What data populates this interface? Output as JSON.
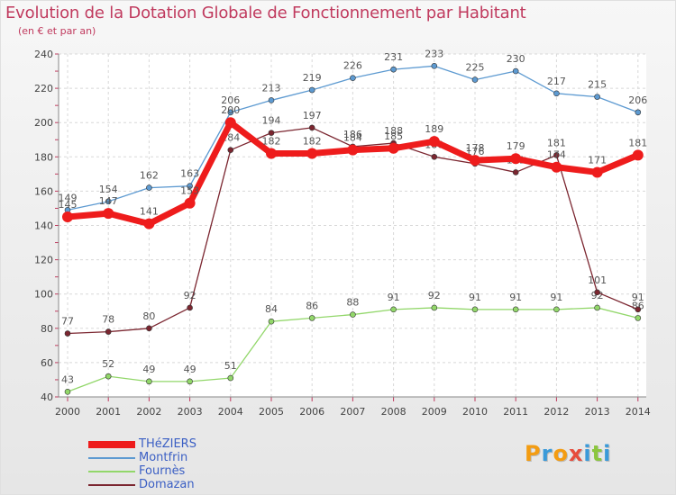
{
  "chart_data": {
    "type": "line",
    "title": "Evolution de la Dotation Globale de Fonctionnement par Habitant",
    "subtitle": "(en € et par an)",
    "x": [
      "2000",
      "2001",
      "2002",
      "2003",
      "2004",
      "2005",
      "2006",
      "2007",
      "2008",
      "2009",
      "2010",
      "2011",
      "2012",
      "2013",
      "2014"
    ],
    "ylim": [
      40,
      240
    ],
    "yticks": [
      "40",
      "60",
      "80",
      "100",
      "120",
      "140",
      "160",
      "180",
      "200",
      "220",
      "240"
    ],
    "grid": true,
    "series": [
      {
        "name": "Montfrin",
        "color": "#5d9ad1",
        "values": [
          149,
          154,
          162,
          163,
          206,
          213,
          219,
          226,
          231,
          233,
          225,
          230,
          217,
          215,
          206
        ]
      },
      {
        "name": "Fournès",
        "color": "#92d76a",
        "values": [
          43,
          52,
          49,
          49,
          51,
          84,
          86,
          88,
          91,
          92,
          91,
          91,
          91,
          92,
          86
        ]
      },
      {
        "name": "Domazan",
        "color": "#7b2630",
        "values": [
          77,
          78,
          80,
          92,
          184,
          194,
          197,
          186,
          188,
          180,
          176,
          171,
          181,
          101,
          91
        ]
      },
      {
        "name": "THéZIERS",
        "color": "#ee1c1c",
        "values": [
          145,
          147,
          141,
          153,
          200,
          182,
          182,
          184,
          185,
          189,
          178,
          179,
          174,
          171,
          181
        ]
      }
    ],
    "legend_order": [
      "THéZIERS",
      "Montfrin",
      "Fournès",
      "Domazan"
    ],
    "legend_position": "bottom-left"
  },
  "logo": {
    "letters": [
      {
        "ch": "P",
        "color": "#f39c12"
      },
      {
        "ch": "r",
        "color": "#3a9ad9"
      },
      {
        "ch": "o",
        "color": "#f39c12"
      },
      {
        "ch": "x",
        "color": "#e74c3c"
      },
      {
        "ch": "i",
        "color": "#3a9ad9"
      },
      {
        "ch": "t",
        "color": "#8cc63f"
      },
      {
        "ch": "i",
        "color": "#3a9ad9"
      }
    ]
  }
}
